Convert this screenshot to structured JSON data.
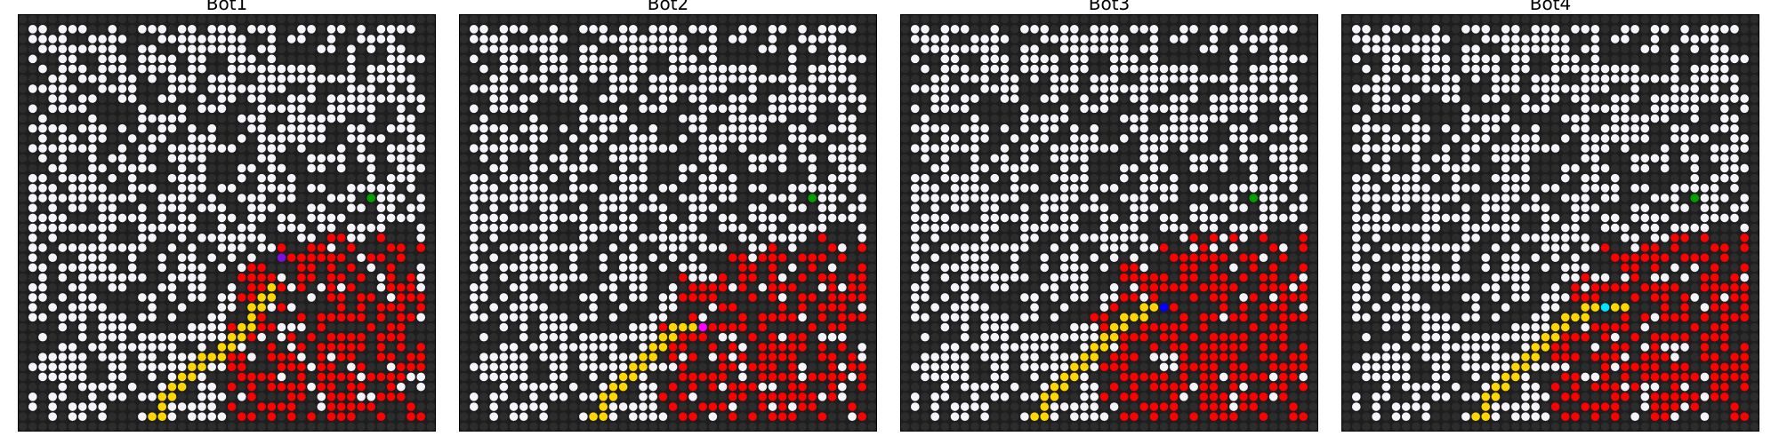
{
  "colors": {
    "background": "#1e1e1e",
    "wall": "#2c2c2c",
    "open": "#f5f4fb",
    "fire": "#ff0000",
    "path": "#ffd700",
    "goal": "#00a000",
    "frame": "#000000"
  },
  "panels": [
    {
      "title": "Bot1",
      "bot_color": "#7a10e0",
      "bot": [
        24,
        26
      ],
      "goal": [
        18,
        35
      ],
      "path": [
        [
          40,
          13
        ],
        [
          40,
          14
        ],
        [
          39,
          14
        ],
        [
          38,
          14
        ],
        [
          38,
          15
        ],
        [
          37,
          15
        ],
        [
          37,
          16
        ],
        [
          36,
          16
        ],
        [
          36,
          17
        ],
        [
          35,
          17
        ],
        [
          35,
          18
        ],
        [
          34,
          18
        ],
        [
          34,
          19
        ],
        [
          34,
          20
        ],
        [
          33,
          20
        ],
        [
          33,
          21
        ],
        [
          32,
          21
        ],
        [
          32,
          22
        ],
        [
          31,
          22
        ],
        [
          31,
          23
        ],
        [
          30,
          23
        ],
        [
          29,
          23
        ],
        [
          29,
          24
        ],
        [
          28,
          24
        ],
        [
          28,
          25
        ],
        [
          27,
          25
        ]
      ]
    },
    {
      "title": "Bot2",
      "bot_color": "#ff00ff",
      "bot": [
        31,
        24
      ],
      "goal": [
        18,
        35
      ],
      "path": [
        [
          40,
          13
        ],
        [
          40,
          14
        ],
        [
          39,
          14
        ],
        [
          38,
          14
        ],
        [
          38,
          15
        ],
        [
          37,
          15
        ],
        [
          37,
          16
        ],
        [
          36,
          16
        ],
        [
          36,
          17
        ],
        [
          35,
          17
        ],
        [
          35,
          18
        ],
        [
          34,
          18
        ],
        [
          34,
          19
        ],
        [
          33,
          19
        ],
        [
          33,
          20
        ],
        [
          32,
          20
        ],
        [
          32,
          21
        ],
        [
          31,
          21
        ],
        [
          31,
          22
        ],
        [
          31,
          23
        ]
      ]
    },
    {
      "title": "Bot3",
      "bot_color": "#0000ff",
      "bot": [
        29,
        26
      ],
      "goal": [
        18,
        35
      ],
      "path": [
        [
          40,
          13
        ],
        [
          40,
          14
        ],
        [
          39,
          14
        ],
        [
          38,
          14
        ],
        [
          38,
          15
        ],
        [
          37,
          15
        ],
        [
          37,
          16
        ],
        [
          36,
          16
        ],
        [
          36,
          17
        ],
        [
          35,
          17
        ],
        [
          35,
          18
        ],
        [
          34,
          18
        ],
        [
          34,
          19
        ],
        [
          33,
          19
        ],
        [
          33,
          20
        ],
        [
          32,
          20
        ],
        [
          32,
          21
        ],
        [
          31,
          21
        ],
        [
          31,
          22
        ],
        [
          30,
          22
        ],
        [
          30,
          23
        ],
        [
          30,
          24
        ],
        [
          29,
          24
        ],
        [
          29,
          25
        ]
      ]
    },
    {
      "title": "Bot4",
      "bot_color": "#00e5ff",
      "bot": [
        29,
        26
      ],
      "goal": [
        18,
        35
      ],
      "path": [
        [
          40,
          13
        ],
        [
          40,
          14
        ],
        [
          39,
          14
        ],
        [
          38,
          14
        ],
        [
          38,
          15
        ],
        [
          37,
          15
        ],
        [
          37,
          16
        ],
        [
          36,
          16
        ],
        [
          36,
          17
        ],
        [
          35,
          17
        ],
        [
          35,
          18
        ],
        [
          34,
          18
        ],
        [
          34,
          19
        ],
        [
          33,
          19
        ],
        [
          33,
          20
        ],
        [
          32,
          20
        ],
        [
          32,
          21
        ],
        [
          31,
          21
        ],
        [
          31,
          22
        ],
        [
          30,
          22
        ],
        [
          30,
          23
        ],
        [
          30,
          24
        ],
        [
          29,
          24
        ],
        [
          29,
          25
        ],
        [
          29,
          27
        ],
        [
          29,
          28
        ]
      ]
    }
  ]
}
